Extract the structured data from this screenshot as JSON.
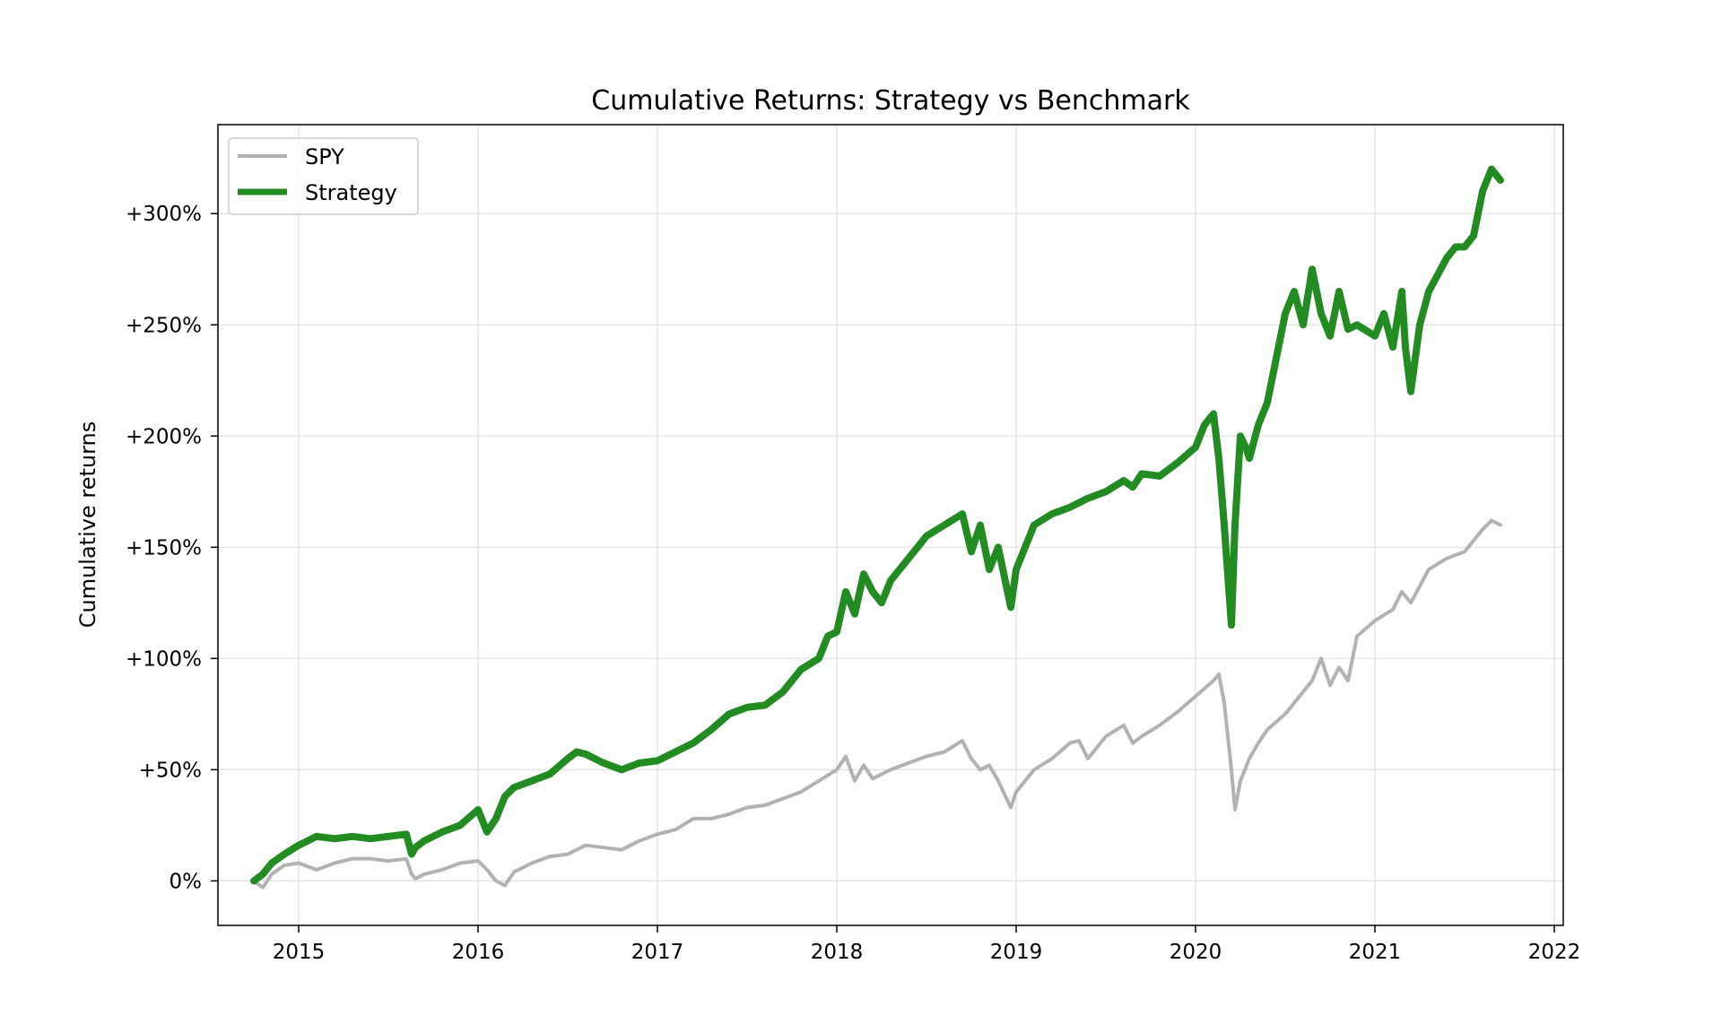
{
  "chart_data": {
    "type": "line",
    "title": "Cumulative Returns: Strategy vs Benchmark",
    "xlabel": "",
    "ylabel": "Cumulative returns",
    "xlim": [
      2014.55,
      2022.05
    ],
    "ylim": [
      -20,
      340
    ],
    "x_ticks": [
      {
        "value": 2015,
        "label": "2015"
      },
      {
        "value": 2016,
        "label": "2016"
      },
      {
        "value": 2017,
        "label": "2017"
      },
      {
        "value": 2018,
        "label": "2018"
      },
      {
        "value": 2019,
        "label": "2019"
      },
      {
        "value": 2020,
        "label": "2020"
      },
      {
        "value": 2021,
        "label": "2021"
      },
      {
        "value": 2022,
        "label": "2022"
      }
    ],
    "y_ticks": [
      {
        "value": 0,
        "label": "0%"
      },
      {
        "value": 50,
        "label": "+50%"
      },
      {
        "value": 100,
        "label": "+100%"
      },
      {
        "value": 150,
        "label": "+150%"
      },
      {
        "value": 200,
        "label": "+200%"
      },
      {
        "value": 250,
        "label": "+250%"
      },
      {
        "value": 300,
        "label": "+300%"
      }
    ],
    "grid": true,
    "legend_position": "top-left",
    "series": [
      {
        "name": "SPY",
        "color": "#b2b2b2",
        "x": [
          2014.75,
          2014.8,
          2014.85,
          2014.92,
          2015.0,
          2015.1,
          2015.2,
          2015.3,
          2015.4,
          2015.5,
          2015.6,
          2015.63,
          2015.65,
          2015.7,
          2015.8,
          2015.9,
          2016.0,
          2016.05,
          2016.1,
          2016.15,
          2016.2,
          2016.3,
          2016.4,
          2016.5,
          2016.6,
          2016.7,
          2016.8,
          2016.9,
          2017.0,
          2017.1,
          2017.2,
          2017.3,
          2017.4,
          2017.5,
          2017.6,
          2017.7,
          2017.8,
          2017.9,
          2018.0,
          2018.05,
          2018.1,
          2018.15,
          2018.2,
          2018.25,
          2018.3,
          2018.4,
          2018.5,
          2018.6,
          2018.7,
          2018.75,
          2018.8,
          2018.85,
          2018.9,
          2018.97,
          2019.0,
          2019.1,
          2019.2,
          2019.3,
          2019.35,
          2019.4,
          2019.5,
          2019.6,
          2019.65,
          2019.7,
          2019.8,
          2019.9,
          2020.0,
          2020.1,
          2020.13,
          2020.16,
          2020.2,
          2020.22,
          2020.25,
          2020.3,
          2020.35,
          2020.4,
          2020.5,
          2020.6,
          2020.65,
          2020.7,
          2020.75,
          2020.8,
          2020.85,
          2020.9,
          2021.0,
          2021.1,
          2021.15,
          2021.2,
          2021.3,
          2021.4,
          2021.5,
          2021.6,
          2021.65,
          2021.7
        ],
        "y": [
          0,
          -3,
          3,
          7,
          8,
          5,
          8,
          10,
          10,
          9,
          10,
          3,
          1,
          3,
          5,
          8,
          9,
          5,
          0,
          -2,
          4,
          8,
          11,
          12,
          16,
          15,
          14,
          18,
          21,
          23,
          28,
          28,
          30,
          33,
          34,
          37,
          40,
          45,
          50,
          56,
          45,
          52,
          46,
          48,
          50,
          53,
          56,
          58,
          63,
          55,
          50,
          52,
          45,
          33,
          40,
          50,
          55,
          62,
          63,
          55,
          65,
          70,
          62,
          65,
          70,
          76,
          83,
          90,
          93,
          80,
          50,
          32,
          45,
          55,
          62,
          68,
          75,
          85,
          90,
          100,
          88,
          96,
          90,
          110,
          117,
          122,
          130,
          125,
          140,
          145,
          148,
          158,
          162,
          160
        ]
      },
      {
        "name": "Strategy",
        "color": "#228b22",
        "x": [
          2014.75,
          2014.8,
          2014.85,
          2014.92,
          2015.0,
          2015.1,
          2015.2,
          2015.3,
          2015.4,
          2015.5,
          2015.6,
          2015.63,
          2015.65,
          2015.7,
          2015.8,
          2015.9,
          2016.0,
          2016.05,
          2016.1,
          2016.15,
          2016.2,
          2016.3,
          2016.4,
          2016.5,
          2016.55,
          2016.6,
          2016.7,
          2016.8,
          2016.9,
          2017.0,
          2017.1,
          2017.2,
          2017.3,
          2017.4,
          2017.5,
          2017.6,
          2017.7,
          2017.8,
          2017.9,
          2017.95,
          2018.0,
          2018.05,
          2018.1,
          2018.15,
          2018.2,
          2018.25,
          2018.3,
          2018.4,
          2018.5,
          2018.6,
          2018.7,
          2018.75,
          2018.8,
          2018.85,
          2018.9,
          2018.97,
          2019.0,
          2019.1,
          2019.2,
          2019.3,
          2019.35,
          2019.4,
          2019.5,
          2019.6,
          2019.65,
          2019.7,
          2019.8,
          2019.9,
          2020.0,
          2020.05,
          2020.1,
          2020.13,
          2020.16,
          2020.2,
          2020.22,
          2020.25,
          2020.28,
          2020.3,
          2020.35,
          2020.4,
          2020.45,
          2020.5,
          2020.55,
          2020.6,
          2020.65,
          2020.7,
          2020.75,
          2020.8,
          2020.85,
          2020.9,
          2021.0,
          2021.05,
          2021.1,
          2021.15,
          2021.17,
          2021.2,
          2021.25,
          2021.3,
          2021.4,
          2021.45,
          2021.5,
          2021.55,
          2021.6,
          2021.65,
          2021.7
        ],
        "y": [
          0,
          3,
          8,
          12,
          16,
          20,
          19,
          20,
          19,
          20,
          21,
          12,
          15,
          18,
          22,
          25,
          32,
          22,
          28,
          38,
          42,
          45,
          48,
          55,
          58,
          57,
          53,
          50,
          53,
          54,
          58,
          62,
          68,
          75,
          78,
          79,
          85,
          95,
          100,
          110,
          112,
          130,
          120,
          138,
          130,
          125,
          135,
          145,
          155,
          160,
          165,
          148,
          160,
          140,
          150,
          123,
          140,
          160,
          165,
          168,
          170,
          172,
          175,
          180,
          177,
          183,
          182,
          188,
          195,
          205,
          210,
          190,
          160,
          115,
          160,
          200,
          195,
          190,
          205,
          215,
          235,
          255,
          265,
          250,
          275,
          255,
          245,
          265,
          248,
          250,
          245,
          255,
          240,
          265,
          240,
          220,
          250,
          265,
          280,
          285,
          285,
          290,
          310,
          320,
          315
        ]
      }
    ]
  }
}
